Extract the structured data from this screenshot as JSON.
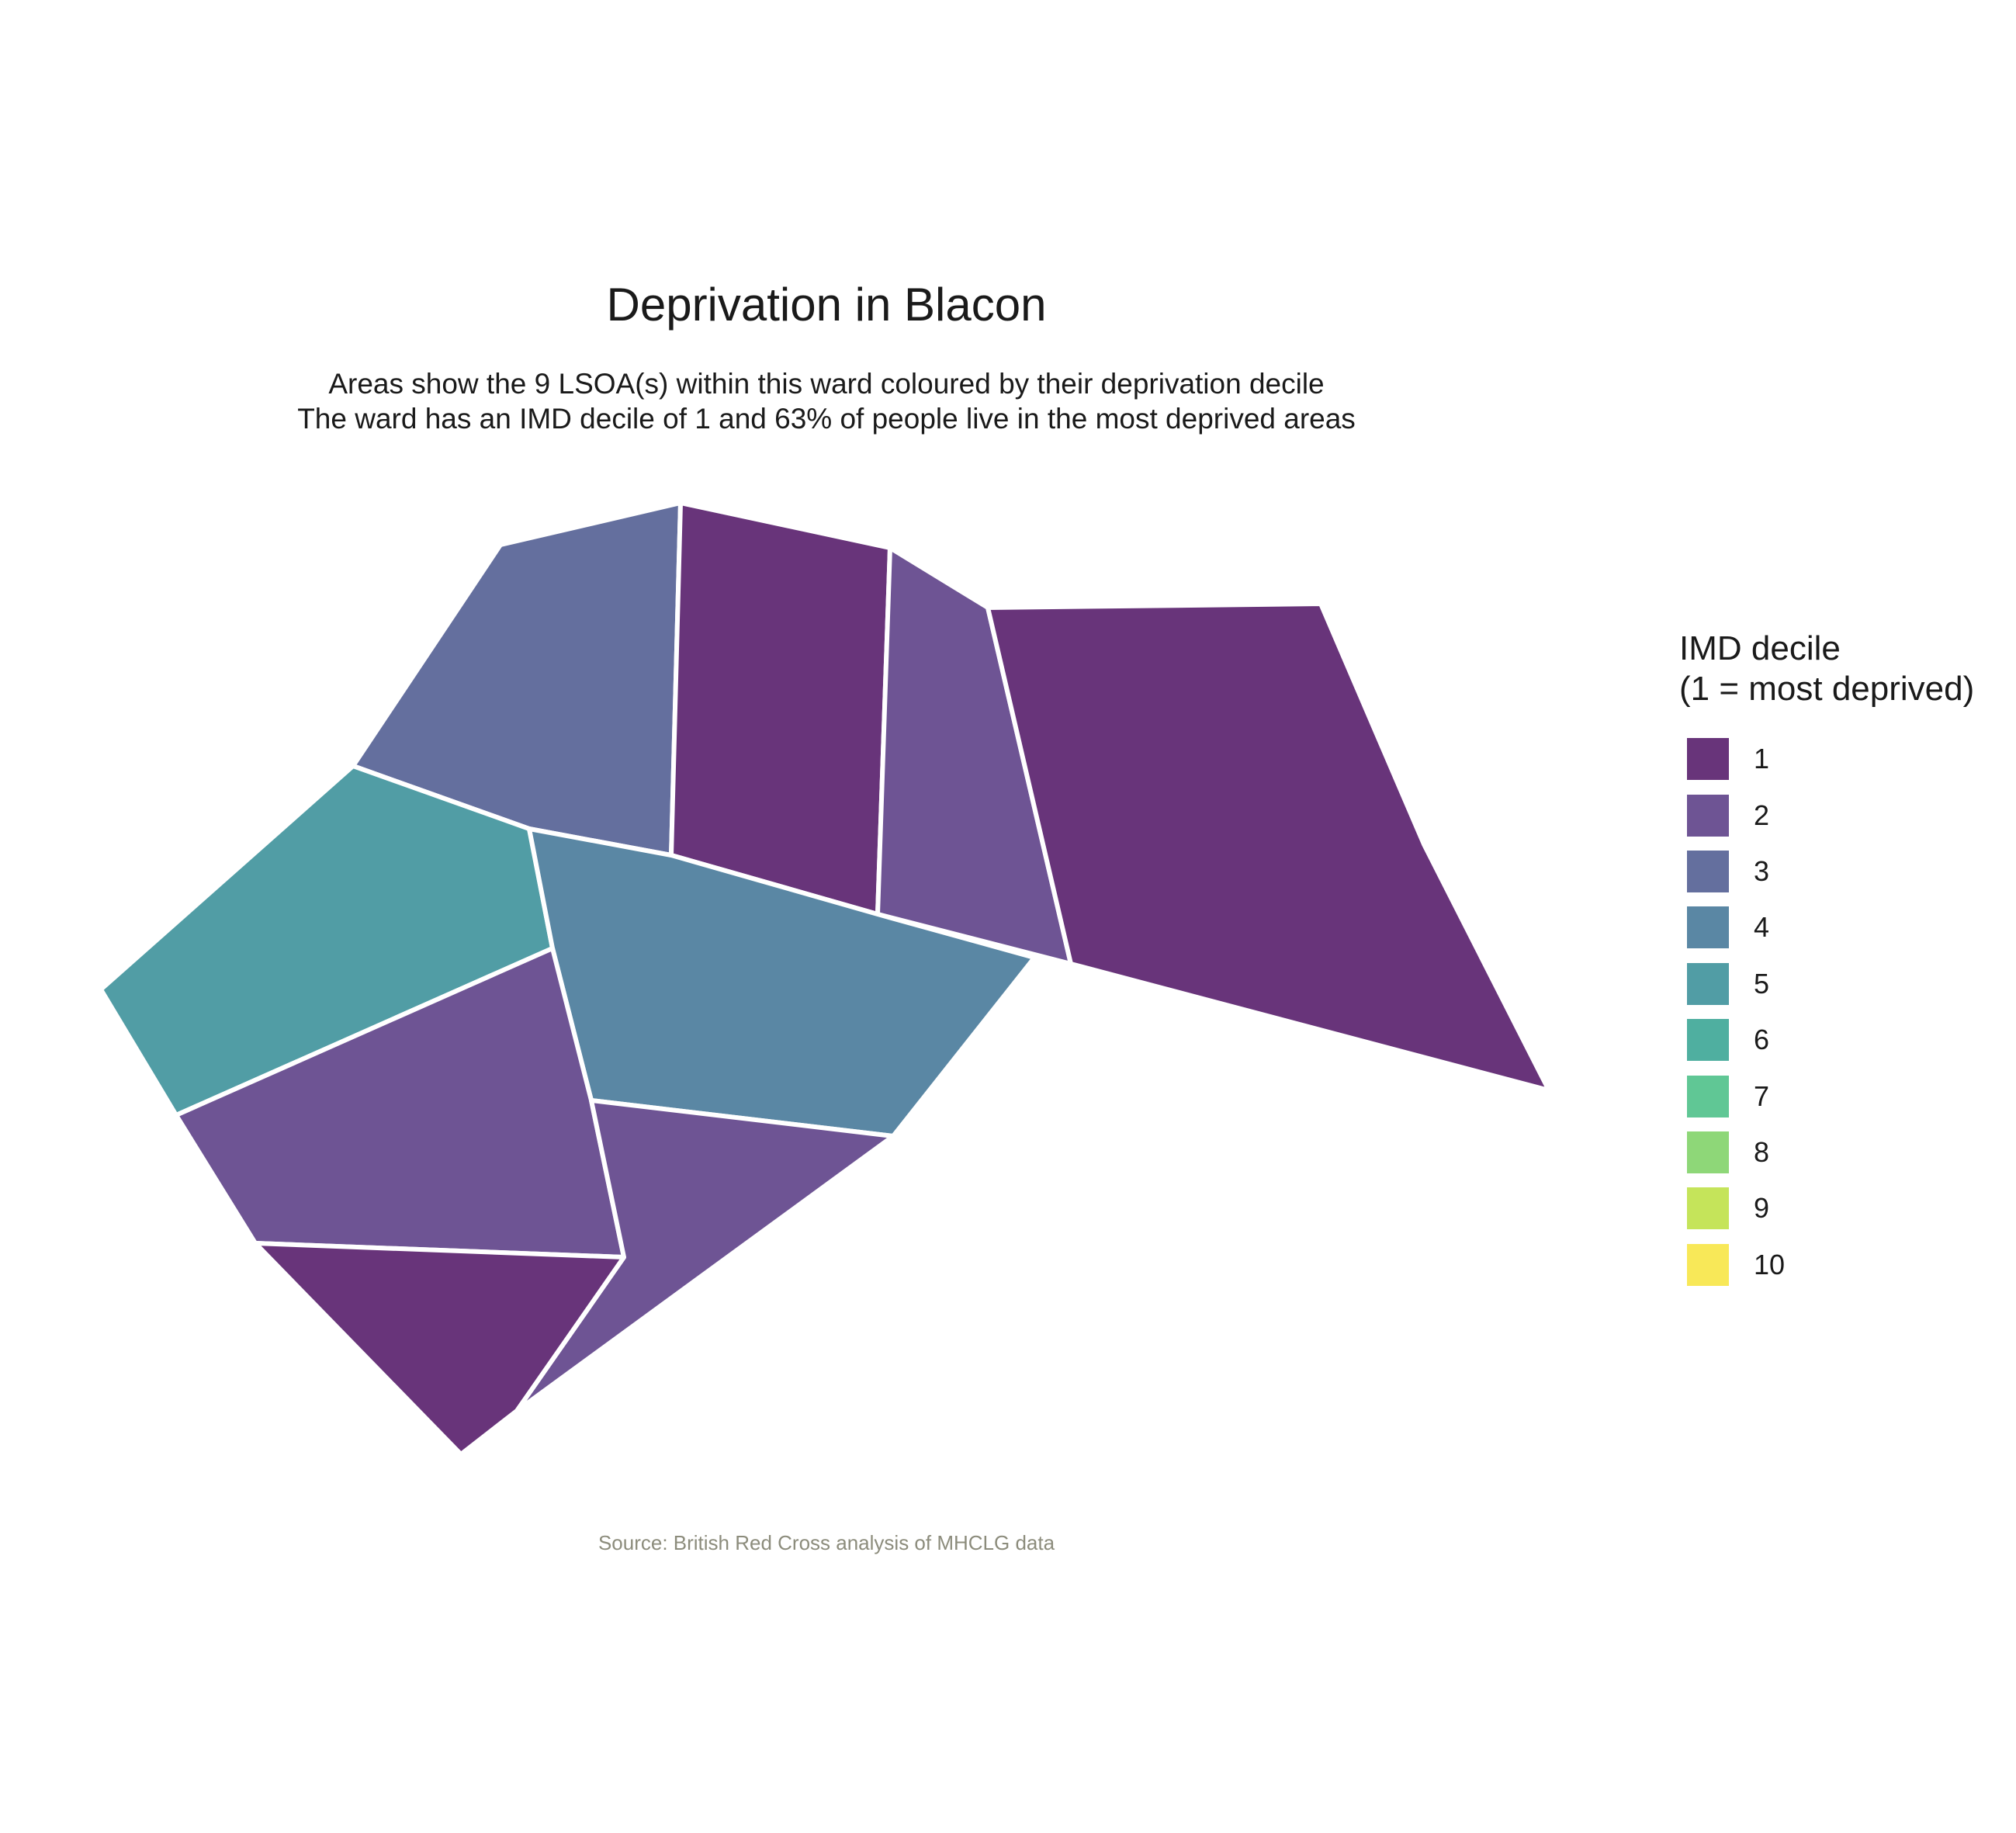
{
  "title": "Deprivation in Blacon",
  "subtitle_line1": "Areas show the 9 LSOA(s) within this ward coloured by their deprivation decile",
  "subtitle_line2": "The ward has an IMD decile of 1 and 63% of people live in the most deprived areas",
  "caption": "Source: British Red Cross analysis of MHCLG data",
  "legend": {
    "title_line1": "IMD decile",
    "title_line2": "(1 = most deprived)",
    "items": [
      {
        "label": "1",
        "color": "#68347A"
      },
      {
        "label": "2",
        "color": "#6E5494"
      },
      {
        "label": "3",
        "color": "#646F9E"
      },
      {
        "label": "4",
        "color": "#5A87A4"
      },
      {
        "label": "5",
        "color": "#519DA5"
      },
      {
        "label": "6",
        "color": "#4FAFA0"
      },
      {
        "label": "7",
        "color": "#60C795"
      },
      {
        "label": "8",
        "color": "#8ED778"
      },
      {
        "label": "9",
        "color": "#C5E45A"
      },
      {
        "label": "10",
        "color": "#F8E858"
      }
    ]
  },
  "chart_data": {
    "type": "choropleth",
    "ward": "Blacon",
    "lsoa_count": 9,
    "ward_imd_decile": 1,
    "percent_in_most_deprived": 63,
    "areas": [
      {
        "id": "lsoa-north-west",
        "decile": 3
      },
      {
        "id": "lsoa-north-central",
        "decile": 1
      },
      {
        "id": "lsoa-north-east-strip",
        "decile": 2
      },
      {
        "id": "lsoa-east",
        "decile": 1
      },
      {
        "id": "lsoa-west",
        "decile": 5
      },
      {
        "id": "lsoa-central",
        "decile": 4
      },
      {
        "id": "lsoa-south-west",
        "decile": 2
      },
      {
        "id": "lsoa-south-central",
        "decile": 2
      },
      {
        "id": "lsoa-south",
        "decile": 1
      }
    ]
  }
}
